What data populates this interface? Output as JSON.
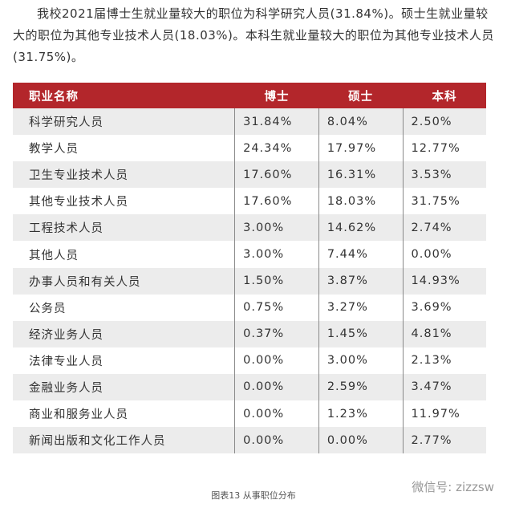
{
  "intro": "我校2021届博士生就业量较大的职位为科学研究人员(31.84%)。硕士生就业量较大的职位为其他专业技术人员(18.03%)。本科生就业量较大的职位为其他专业技术人员(31.75%)。",
  "table": {
    "headers": [
      "职业名称",
      "博士",
      "硕士",
      "本科"
    ],
    "rows": [
      [
        "科学研究人员",
        "31.84%",
        "8.04%",
        "2.50%"
      ],
      [
        "教学人员",
        "24.34%",
        "17.97%",
        "12.77%"
      ],
      [
        "卫生专业技术人员",
        "17.60%",
        "16.31%",
        "3.53%"
      ],
      [
        "其他专业技术人员",
        "17.60%",
        "18.03%",
        "31.75%"
      ],
      [
        "工程技术人员",
        "3.00%",
        "14.62%",
        "2.74%"
      ],
      [
        "其他人员",
        "3.00%",
        "7.44%",
        "0.00%"
      ],
      [
        "办事人员和有关人员",
        "1.50%",
        "3.87%",
        "14.93%"
      ],
      [
        "公务员",
        "0.75%",
        "3.27%",
        "3.69%"
      ],
      [
        "经济业务人员",
        "0.37%",
        "1.45%",
        "4.81%"
      ],
      [
        "法律专业人员",
        "0.00%",
        "3.00%",
        "2.13%"
      ],
      [
        "金融业务人员",
        "0.00%",
        "2.59%",
        "3.47%"
      ],
      [
        "商业和服务业人员",
        "0.00%",
        "1.23%",
        "11.97%"
      ],
      [
        "新闻出版和文化工作人员",
        "0.00%",
        "0.00%",
        "2.77%"
      ]
    ]
  },
  "caption": "图表13 从事职位分布",
  "watermark": "微信号: zizzsw"
}
